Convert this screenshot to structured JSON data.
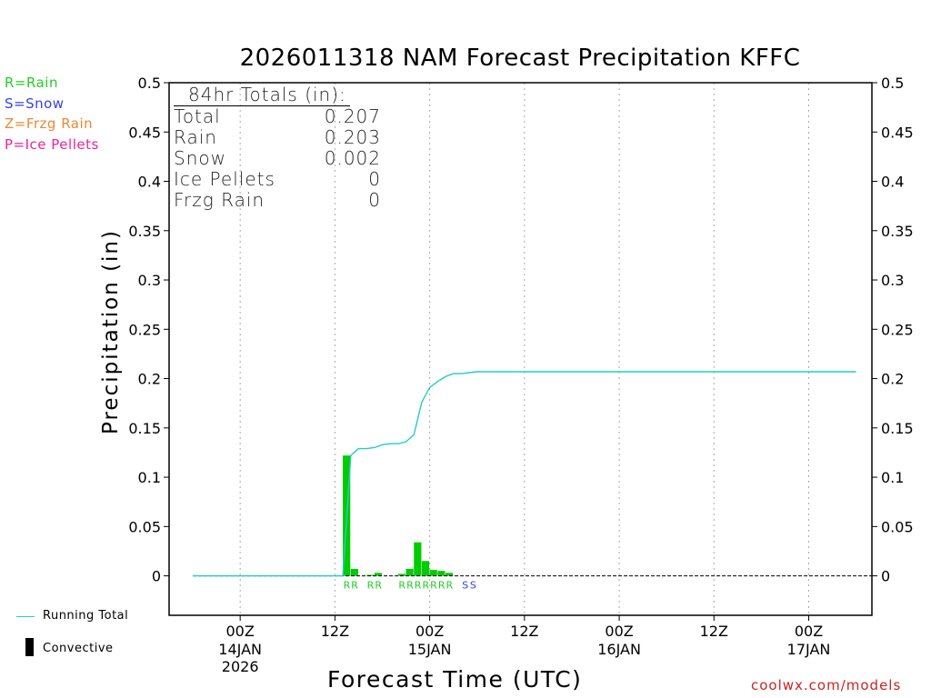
{
  "title": "2026011318 NAM Forecast Precipitation KFFC",
  "ylabel": "Precipitation (in)",
  "xlabel": "Forecast Time (UTC)",
  "credit": "coolwx.com/models",
  "precip_legend": [
    {
      "label": "R=Rain",
      "color": "#22cc22"
    },
    {
      "label": "S=Snow",
      "color": "#3344dd"
    },
    {
      "label": "Z=Frzg Rain",
      "color": "#ee8833"
    },
    {
      "label": "P=Ice Pellets",
      "color": "#ee2299"
    }
  ],
  "totals": {
    "header": "84hr Totals (in):",
    "rows": [
      {
        "label": "Total",
        "value": "0.207"
      },
      {
        "label": "Rain",
        "value": "0.203"
      },
      {
        "label": "Snow",
        "value": "0.002"
      },
      {
        "label": "Ice Pellets",
        "value": "0"
      },
      {
        "label": "Frzg Rain",
        "value": "0"
      }
    ]
  },
  "footer_legend": {
    "running_total": "Running Total",
    "convective": "Convective"
  },
  "colors": {
    "running_total": "#22cccc",
    "rain_bar": "#00cc00",
    "rain_label": "#22cc22",
    "snow_label": "#3344dd",
    "grid": "#aaaaaa"
  },
  "chart_data": {
    "type": "bar",
    "title": "2026011318 NAM Forecast Precipitation KFFC",
    "xlabel": "Forecast Time (UTC)",
    "ylabel": "Precipitation (in)",
    "x_units": "forecast hour (from 2026-01-13 18Z)",
    "xlim": [
      -3,
      86
    ],
    "ylim": [
      -0.04,
      0.5
    ],
    "y_ticks": [
      0,
      0.05,
      0.1,
      0.15,
      0.2,
      0.25,
      0.3,
      0.35,
      0.4,
      0.45,
      0.5
    ],
    "y_tick_labels": [
      "0",
      "0.05",
      "0.1",
      "0.15",
      "0.2",
      "0.25",
      "0.3",
      "0.35",
      "0.4",
      "0.45",
      "0.5"
    ],
    "x_ticks": [
      {
        "hour": 6,
        "label": "00Z",
        "date": "14JAN",
        "year": "2026"
      },
      {
        "hour": 18,
        "label": "12Z",
        "date": "",
        "year": ""
      },
      {
        "hour": 30,
        "label": "00Z",
        "date": "15JAN",
        "year": ""
      },
      {
        "hour": 42,
        "label": "12Z",
        "date": "",
        "year": ""
      },
      {
        "hour": 54,
        "label": "00Z",
        "date": "16JAN",
        "year": ""
      },
      {
        "hour": 66,
        "label": "12Z",
        "date": "",
        "year": ""
      },
      {
        "hour": 78,
        "label": "00Z",
        "date": "17JAN",
        "year": ""
      }
    ],
    "hourly_precip": [
      {
        "hour": 20,
        "value": 0.122,
        "type": "R"
      },
      {
        "hour": 21,
        "value": 0.007,
        "type": "R"
      },
      {
        "hour": 23,
        "value": 0.001,
        "type": "R"
      },
      {
        "hour": 24,
        "value": 0.003,
        "type": "R"
      },
      {
        "hour": 27,
        "value": 0.002,
        "type": "R"
      },
      {
        "hour": 28,
        "value": 0.007,
        "type": "R"
      },
      {
        "hour": 29,
        "value": 0.034,
        "type": "R"
      },
      {
        "hour": 30,
        "value": 0.015,
        "type": "R"
      },
      {
        "hour": 31,
        "value": 0.006,
        "type": "R"
      },
      {
        "hour": 32,
        "value": 0.005,
        "type": "R"
      },
      {
        "hour": 33,
        "value": 0.003,
        "type": "R"
      },
      {
        "hour": 35,
        "value": 0.001,
        "type": "S"
      },
      {
        "hour": 36,
        "value": 0.001,
        "type": "S"
      }
    ],
    "running_total": {
      "hours": [
        0,
        18,
        19,
        20,
        21,
        22,
        23,
        24,
        25,
        26,
        27,
        28,
        29,
        30,
        31,
        32,
        33,
        34,
        35,
        36,
        84
      ],
      "values": [
        0,
        0,
        0,
        0.122,
        0.129,
        0.129,
        0.13,
        0.133,
        0.134,
        0.134,
        0.136,
        0.143,
        0.176,
        0.191,
        0.197,
        0.202,
        0.205,
        0.205,
        0.206,
        0.207,
        0.207
      ]
    }
  }
}
